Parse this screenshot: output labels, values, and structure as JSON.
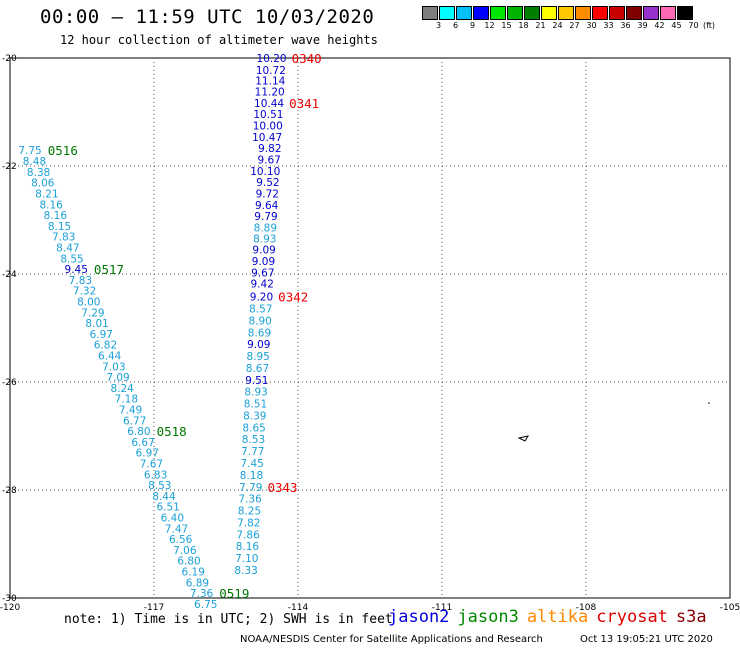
{
  "title": "00:00 – 11:59 UTC 10/03/2020",
  "subtitle": "12 hour collection of altimeter wave heights",
  "legend": {
    "colors": [
      "#7f7f7f",
      "#00ffff",
      "#00bfff",
      "#0000ff",
      "#00e600",
      "#00b400",
      "#008000",
      "#ffff00",
      "#ffc800",
      "#ff8c00",
      "#ff0000",
      "#c80000",
      "#7f0000",
      "#9932cc",
      "#ff69b4",
      "#000000"
    ],
    "labels": [
      "3",
      "6",
      "9",
      "12",
      "15",
      "18",
      "21",
      "24",
      "27",
      "30",
      "33",
      "36",
      "39",
      "42",
      "45",
      "70"
    ],
    "unit": "(ft)"
  },
  "axes": {
    "lon_ticks": [
      {
        "label": "-120",
        "value": -120
      },
      {
        "label": "-117",
        "value": -117
      },
      {
        "label": "-114",
        "value": -114
      },
      {
        "label": "-111",
        "value": -111
      },
      {
        "label": "-108",
        "value": -108
      },
      {
        "label": "-105",
        "value": -105
      }
    ],
    "lat_ticks": [
      {
        "label": "-20",
        "value": -20
      },
      {
        "label": "-22",
        "value": -22
      },
      {
        "label": "-24",
        "value": -24
      },
      {
        "label": "-26",
        "value": -26
      },
      {
        "label": "-28",
        "value": -28
      },
      {
        "label": "-30",
        "value": -30
      }
    ],
    "lon_range": [
      -120,
      -105
    ],
    "lat_range": [
      -30,
      -20
    ],
    "grid": true
  },
  "colors": {
    "light": "#1ba0d8",
    "dark": "#0000cc",
    "time_green": "#007700",
    "time_red": "#ee0000"
  },
  "tracks": [
    {
      "name": "east",
      "points": [
        {
          "lat": -20.0,
          "v": "10.20",
          "c": "dark"
        },
        {
          "lat": -20.22,
          "v": "10.72",
          "c": "dark"
        },
        {
          "lat": -20.42,
          "v": "11.14",
          "c": "dark"
        },
        {
          "lat": -20.62,
          "v": "11.20",
          "c": "dark"
        },
        {
          "lat": -20.83,
          "v": "10.44",
          "c": "dark"
        },
        {
          "lat": -21.04,
          "v": "10.51",
          "c": "dark"
        },
        {
          "lat": -21.25,
          "v": "10.00",
          "c": "dark"
        },
        {
          "lat": -21.46,
          "v": "10.47",
          "c": "dark"
        },
        {
          "lat": -21.67,
          "v": "9.82",
          "c": "dark"
        },
        {
          "lat": -21.88,
          "v": "9.67",
          "c": "dark"
        },
        {
          "lat": -22.09,
          "v": "10.10",
          "c": "dark"
        },
        {
          "lat": -22.3,
          "v": "9.52",
          "c": "dark"
        },
        {
          "lat": -22.51,
          "v": "9.72",
          "c": "dark"
        },
        {
          "lat": -22.72,
          "v": "9.64",
          "c": "dark"
        },
        {
          "lat": -22.93,
          "v": "9.79",
          "c": "dark"
        },
        {
          "lat": -23.14,
          "v": "8.89",
          "c": "light"
        },
        {
          "lat": -23.34,
          "v": "8.93",
          "c": "light"
        },
        {
          "lat": -23.55,
          "v": "9.09",
          "c": "dark"
        },
        {
          "lat": -23.76,
          "v": "9.09",
          "c": "dark"
        },
        {
          "lat": -23.97,
          "v": "9.67",
          "c": "dark"
        },
        {
          "lat": -24.18,
          "v": "9.42",
          "c": "dark"
        },
        {
          "lat": -24.42,
          "v": "9.20",
          "c": "dark"
        },
        {
          "lat": -24.64,
          "v": "8.57",
          "c": "light"
        },
        {
          "lat": -24.86,
          "v": "8.90",
          "c": "light"
        },
        {
          "lat": -25.08,
          "v": "8.69",
          "c": "light"
        },
        {
          "lat": -25.3,
          "v": "9.09",
          "c": "dark"
        },
        {
          "lat": -25.52,
          "v": "8.95",
          "c": "light"
        },
        {
          "lat": -25.74,
          "v": "8.67",
          "c": "light"
        },
        {
          "lat": -25.96,
          "v": "9.51",
          "c": "dark"
        },
        {
          "lat": -26.18,
          "v": "8.93",
          "c": "light"
        },
        {
          "lat": -26.4,
          "v": "8.51",
          "c": "light"
        },
        {
          "lat": -26.62,
          "v": "8.39",
          "c": "light"
        },
        {
          "lat": -26.84,
          "v": "8.65",
          "c": "light"
        },
        {
          "lat": -27.06,
          "v": "8.53",
          "c": "light"
        },
        {
          "lat": -27.28,
          "v": "7.77",
          "c": "light"
        },
        {
          "lat": -27.5,
          "v": "7.45",
          "c": "light"
        },
        {
          "lat": -27.72,
          "v": "8.18",
          "c": "light"
        },
        {
          "lat": -27.94,
          "v": "7.79",
          "c": "light"
        },
        {
          "lat": -28.16,
          "v": "7.36",
          "c": "light"
        },
        {
          "lat": -28.38,
          "v": "8.25",
          "c": "light"
        },
        {
          "lat": -28.6,
          "v": "7.82",
          "c": "light"
        },
        {
          "lat": -28.82,
          "v": "7.86",
          "c": "light"
        },
        {
          "lat": -29.04,
          "v": "8.16",
          "c": "light"
        },
        {
          "lat": -29.26,
          "v": "7.10",
          "c": "light"
        },
        {
          "lat": -29.48,
          "v": "8.33",
          "c": "light"
        }
      ]
    },
    {
      "name": "west",
      "points": [
        {
          "lat": -21.7,
          "v": "7.75",
          "c": "light"
        },
        {
          "lat": -21.91,
          "v": "8.48",
          "c": "light"
        },
        {
          "lat": -22.11,
          "v": "8.38",
          "c": "light"
        },
        {
          "lat": -22.31,
          "v": "8.06",
          "c": "light"
        },
        {
          "lat": -22.51,
          "v": "8.21",
          "c": "light"
        },
        {
          "lat": -22.71,
          "v": "8.16",
          "c": "light"
        },
        {
          "lat": -22.91,
          "v": "8.16",
          "c": "light"
        },
        {
          "lat": -23.11,
          "v": "8.15",
          "c": "light"
        },
        {
          "lat": -23.31,
          "v": "7.83",
          "c": "light"
        },
        {
          "lat": -23.51,
          "v": "8.47",
          "c": "light"
        },
        {
          "lat": -23.71,
          "v": "8.55",
          "c": "light"
        },
        {
          "lat": -23.91,
          "v": "9.45",
          "c": "dark"
        },
        {
          "lat": -24.11,
          "v": "7.83",
          "c": "light"
        },
        {
          "lat": -24.31,
          "v": "7.32",
          "c": "light"
        },
        {
          "lat": -24.51,
          "v": "8.00",
          "c": "light"
        },
        {
          "lat": -24.71,
          "v": "7.29",
          "c": "light"
        },
        {
          "lat": -24.91,
          "v": "8.01",
          "c": "light"
        },
        {
          "lat": -25.11,
          "v": "6.97",
          "c": "light"
        },
        {
          "lat": -25.31,
          "v": "6.82",
          "c": "light"
        },
        {
          "lat": -25.51,
          "v": "6.44",
          "c": "light"
        },
        {
          "lat": -25.71,
          "v": "7.03",
          "c": "light"
        },
        {
          "lat": -25.91,
          "v": "7.09",
          "c": "light"
        },
        {
          "lat": -26.11,
          "v": "8.24",
          "c": "light"
        },
        {
          "lat": -26.31,
          "v": "7.18",
          "c": "light"
        },
        {
          "lat": -26.51,
          "v": "7.49",
          "c": "light"
        },
        {
          "lat": -26.71,
          "v": "6.77",
          "c": "light"
        },
        {
          "lat": -26.91,
          "v": "6.80",
          "c": "light"
        },
        {
          "lat": -27.11,
          "v": "6.67",
          "c": "light"
        },
        {
          "lat": -27.31,
          "v": "6.97",
          "c": "light"
        },
        {
          "lat": -27.51,
          "v": "7.67",
          "c": "light"
        },
        {
          "lat": -27.71,
          "v": "6.83",
          "c": "light"
        },
        {
          "lat": -27.91,
          "v": "8.53",
          "c": "light"
        },
        {
          "lat": -28.11,
          "v": "8.44",
          "c": "light"
        },
        {
          "lat": -28.31,
          "v": "6.51",
          "c": "light"
        },
        {
          "lat": -28.51,
          "v": "6.40",
          "c": "light"
        },
        {
          "lat": -28.71,
          "v": "7.47",
          "c": "light"
        },
        {
          "lat": -28.91,
          "v": "6.56",
          "c": "light"
        },
        {
          "lat": -29.11,
          "v": "7.06",
          "c": "light"
        },
        {
          "lat": -29.31,
          "v": "6.80",
          "c": "light"
        },
        {
          "lat": -29.51,
          "v": "6.19",
          "c": "light"
        },
        {
          "lat": -29.71,
          "v": "6.89",
          "c": "light"
        },
        {
          "lat": -29.91,
          "v": "7.36",
          "c": "light"
        },
        {
          "lat": -30.11,
          "v": "6.75",
          "c": "light"
        }
      ]
    }
  ],
  "time_labels": [
    {
      "t": "0340",
      "c": "time_red",
      "track": "east",
      "lat": -20.0
    },
    {
      "t": "0341",
      "c": "time_red",
      "track": "east",
      "lat": -20.83
    },
    {
      "t": "0342",
      "c": "time_red",
      "track": "east",
      "lat": -24.42
    },
    {
      "t": "0343",
      "c": "time_red",
      "track": "east",
      "lat": -27.94
    },
    {
      "t": "0516",
      "c": "time_green",
      "track": "west",
      "lat": -21.7
    },
    {
      "t": "0517",
      "c": "time_green",
      "track": "west",
      "lat": -23.91
    },
    {
      "t": "0518",
      "c": "time_green",
      "track": "west",
      "lat": -26.91
    },
    {
      "t": "0519",
      "c": "time_green",
      "track": "west",
      "lat": -29.91
    }
  ],
  "note": "note:  1) Time is in UTC; 2) SWH is in feet",
  "satellites": [
    {
      "name": "jason2",
      "color": "#0000dd"
    },
    {
      "name": "jason3",
      "color": "#008800"
    },
    {
      "name": "altika",
      "color": "#ff8800"
    },
    {
      "name": "cryosat",
      "color": "#dd0000"
    },
    {
      "name": "s3a",
      "color": "#880000"
    }
  ],
  "footer": {
    "org": "NOAA/NESDIS Center for Satellite Applications and Research",
    "timestamp": "Oct 13 19:05:21 UTC 2020"
  }
}
